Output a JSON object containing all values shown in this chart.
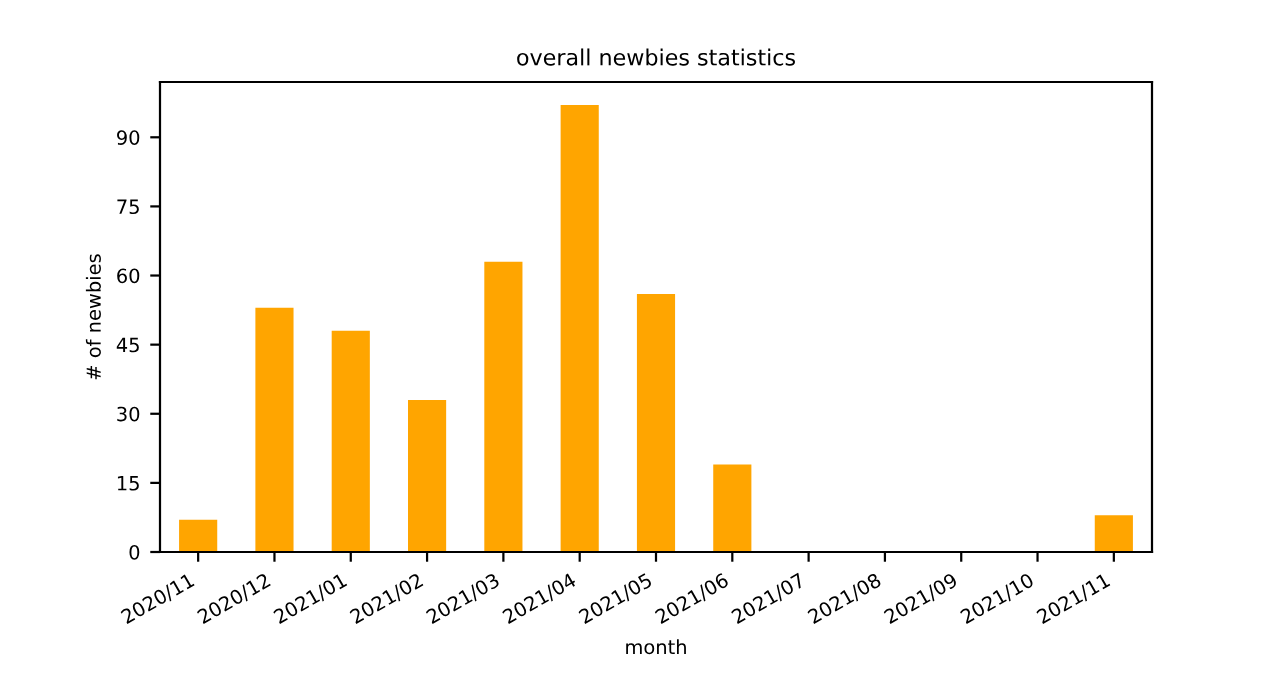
{
  "chart_data": {
    "type": "bar",
    "title": "overall newbies statistics",
    "xlabel": "month",
    "ylabel": "# of newbies",
    "categories": [
      "2020/11",
      "2020/12",
      "2021/01",
      "2021/02",
      "2021/03",
      "2021/04",
      "2021/05",
      "2021/06",
      "2021/07",
      "2021/08",
      "2021/09",
      "2021/10",
      "2021/11"
    ],
    "values": [
      7,
      53,
      48,
      33,
      63,
      97,
      56,
      19,
      0,
      0,
      0,
      0,
      8
    ],
    "color": "#ffa500",
    "ylim": [
      0,
      102
    ],
    "yticks": [
      0,
      15,
      30,
      45,
      60,
      75,
      90
    ],
    "grid": false,
    "legend": false
  }
}
